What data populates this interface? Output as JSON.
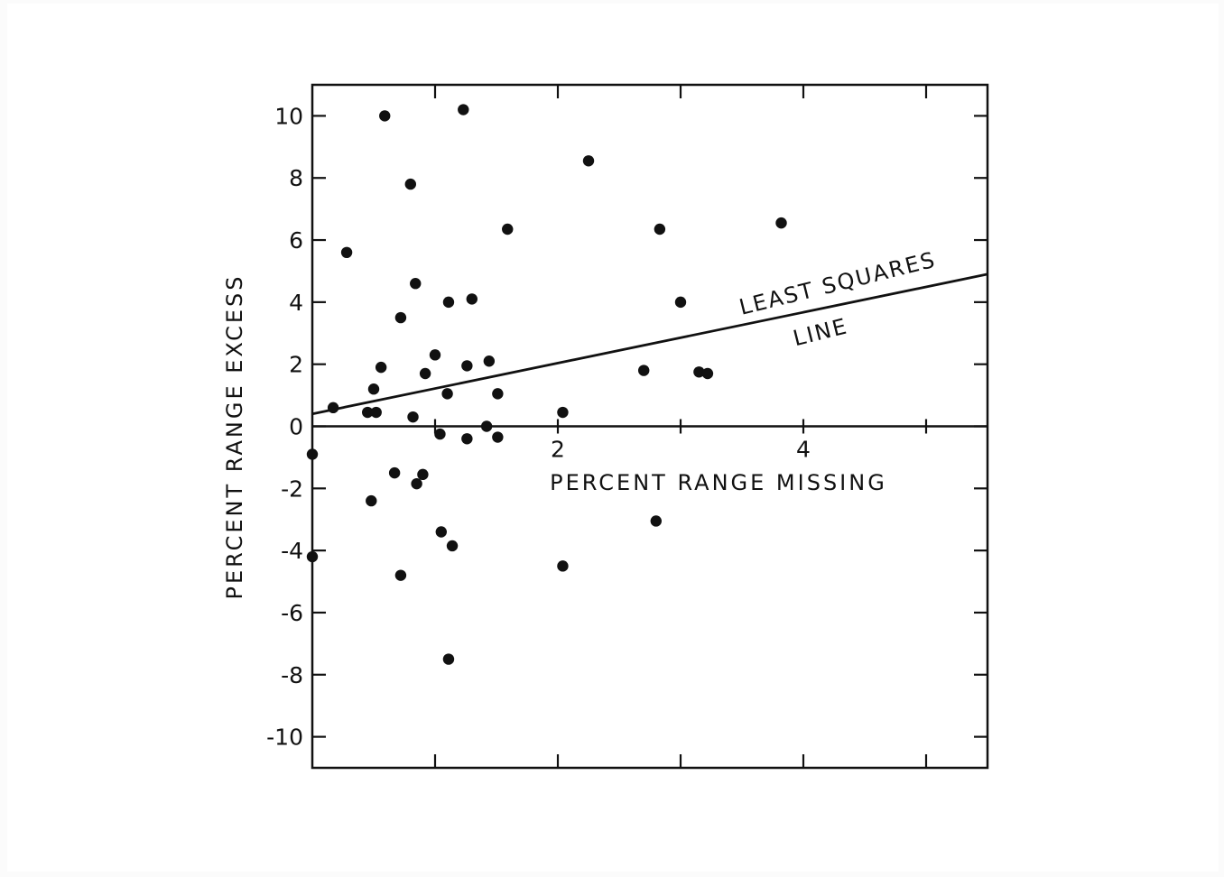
{
  "chart_data": {
    "type": "scatter",
    "xlabel": "PERCENT RANGE MISSING",
    "ylabel": "PERCENT RANGE EXCESS",
    "xlim": [
      0,
      5.5
    ],
    "ylim": [
      -11,
      11
    ],
    "x_ticks": [
      1,
      2,
      3,
      4,
      5
    ],
    "x_tick_labels": [
      {
        "value": 2,
        "label": "2"
      },
      {
        "value": 4,
        "label": "4"
      }
    ],
    "y_ticks": [
      -10,
      -8,
      -6,
      -4,
      -2,
      0,
      2,
      4,
      6,
      8,
      10
    ],
    "y_tick_labels": [
      "-10",
      "-8",
      "-6",
      "-4",
      "-2",
      "0",
      "2",
      "4",
      "6",
      "8",
      "10"
    ],
    "grid": false,
    "points": [
      {
        "x": 0.0,
        "y": -0.9
      },
      {
        "x": 0.0,
        "y": -4.2
      },
      {
        "x": 0.17,
        "y": 0.6
      },
      {
        "x": 0.28,
        "y": 5.6
      },
      {
        "x": 0.45,
        "y": 0.45
      },
      {
        "x": 0.5,
        "y": 1.2
      },
      {
        "x": 0.52,
        "y": 0.45
      },
      {
        "x": 0.56,
        "y": 1.9
      },
      {
        "x": 0.48,
        "y": -2.4
      },
      {
        "x": 0.59,
        "y": 10.0
      },
      {
        "x": 0.67,
        "y": -1.5
      },
      {
        "x": 0.72,
        "y": 3.5
      },
      {
        "x": 0.72,
        "y": -4.8
      },
      {
        "x": 0.8,
        "y": 7.8
      },
      {
        "x": 0.82,
        "y": 0.3
      },
      {
        "x": 0.84,
        "y": 4.6
      },
      {
        "x": 0.85,
        "y": -1.85
      },
      {
        "x": 0.9,
        "y": -1.55
      },
      {
        "x": 0.92,
        "y": 1.7
      },
      {
        "x": 1.0,
        "y": 2.3
      },
      {
        "x": 1.04,
        "y": -0.25
      },
      {
        "x": 1.05,
        "y": -3.4
      },
      {
        "x": 1.1,
        "y": 1.05
      },
      {
        "x": 1.11,
        "y": 4.0
      },
      {
        "x": 1.11,
        "y": -7.5
      },
      {
        "x": 1.14,
        "y": -3.85
      },
      {
        "x": 1.23,
        "y": 10.2
      },
      {
        "x": 1.26,
        "y": 1.95
      },
      {
        "x": 1.26,
        "y": -0.4
      },
      {
        "x": 1.3,
        "y": 4.1
      },
      {
        "x": 1.42,
        "y": 0.0
      },
      {
        "x": 1.44,
        "y": 2.1
      },
      {
        "x": 1.51,
        "y": 1.05
      },
      {
        "x": 1.51,
        "y": -0.35
      },
      {
        "x": 1.59,
        "y": 6.35
      },
      {
        "x": 2.04,
        "y": 0.45
      },
      {
        "x": 2.04,
        "y": -4.5
      },
      {
        "x": 2.25,
        "y": 8.55
      },
      {
        "x": 2.7,
        "y": 1.8
      },
      {
        "x": 2.8,
        "y": -3.05
      },
      {
        "x": 2.83,
        "y": 6.35
      },
      {
        "x": 3.0,
        "y": 4.0
      },
      {
        "x": 3.15,
        "y": 1.75
      },
      {
        "x": 3.22,
        "y": 1.7
      },
      {
        "x": 3.82,
        "y": 6.55
      }
    ],
    "fit_line": {
      "x": [
        0,
        5.5
      ],
      "y": [
        0.4,
        4.9
      ]
    },
    "annotations": [
      "LEAST SQUARES",
      "LINE"
    ],
    "colors": {
      "ink": "#111111",
      "background": "#fbfbfb",
      "plot_bg": "#ffffff"
    }
  }
}
